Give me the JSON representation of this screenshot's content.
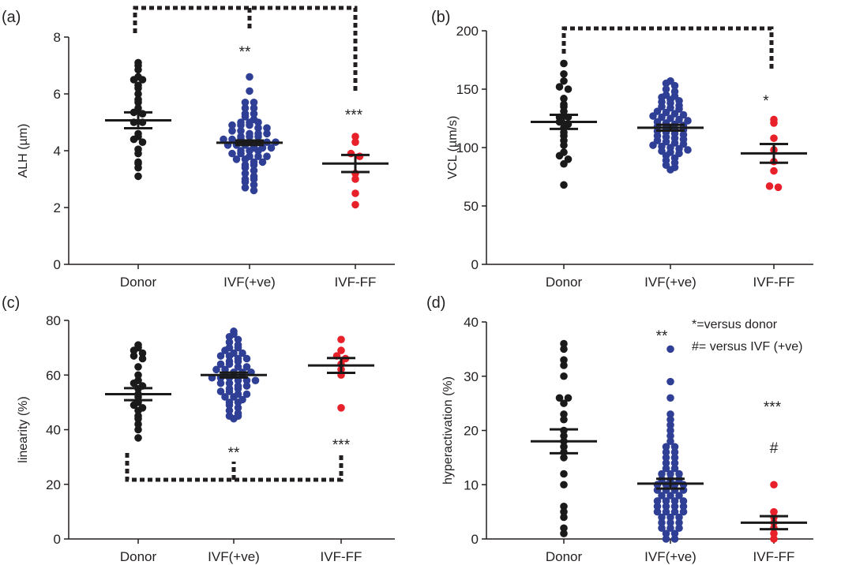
{
  "chart_data": [
    {
      "panel": "(a)",
      "type": "scatter",
      "ylabel": "ALH (µm)",
      "ylim": [
        0,
        8
      ],
      "yticks": [
        0,
        2,
        4,
        6,
        8
      ],
      "categories": [
        "Donor",
        "IVF(+ve)",
        "IVF-FF"
      ],
      "series": [
        {
          "category": "Donor",
          "color": "#1a1a1a",
          "mean": 5.07,
          "sem": 0.28,
          "values": [
            7.1,
            7.0,
            6.85,
            6.6,
            6.5,
            6.5,
            6.3,
            6.2,
            6.0,
            5.8,
            5.7,
            5.5,
            5.35,
            5.3,
            5.0,
            5.0,
            4.6,
            4.5,
            4.4,
            4.3,
            4.05,
            3.9,
            3.6,
            3.55,
            3.4,
            3.1
          ]
        },
        {
          "category": "IVF(+ve)",
          "color": "#2e3f95",
          "mean": 4.28,
          "sem": 0.08,
          "values": [
            6.6,
            6.1,
            5.7,
            5.7,
            5.5,
            5.5,
            5.3,
            5.3,
            5.2,
            5.1,
            5.0,
            5.0,
            5.0,
            4.9,
            4.9,
            4.9,
            4.8,
            4.8,
            4.7,
            4.7,
            4.6,
            4.6,
            4.6,
            4.5,
            4.5,
            4.5,
            4.4,
            4.4,
            4.4,
            4.3,
            4.3,
            4.3,
            4.3,
            4.2,
            4.2,
            4.2,
            4.1,
            4.1,
            4.1,
            4.0,
            4.0,
            4.0,
            3.9,
            3.9,
            3.8,
            3.8,
            3.8,
            3.7,
            3.7,
            3.6,
            3.6,
            3.5,
            3.5,
            3.4,
            3.3,
            3.2,
            3.1,
            3.0,
            3.0,
            2.9,
            2.8,
            2.7,
            2.6
          ]
        },
        {
          "category": "IVF-FF",
          "color": "#e8202a",
          "mean": 3.55,
          "sem": 0.3,
          "values": [
            4.5,
            4.3,
            3.9,
            3.8,
            3.2,
            3.0,
            2.5,
            2.1
          ]
        }
      ],
      "annotations": [
        "**",
        "***"
      ]
    },
    {
      "panel": "(b)",
      "type": "scatter",
      "ylabel": "VCL (µm/s)",
      "ylim": [
        0,
        200
      ],
      "yticks": [
        0,
        50,
        100,
        150,
        200
      ],
      "categories": [
        "Donor",
        "IVF(+ve)",
        "IVF-FF"
      ],
      "series": [
        {
          "category": "Donor",
          "color": "#1a1a1a",
          "mean": 122,
          "sem": 6,
          "values": [
            172,
            163,
            157,
            152,
            150,
            142,
            137,
            135,
            131,
            126,
            126,
            122,
            120,
            117,
            113,
            110,
            106,
            102,
            96,
            93,
            90,
            86,
            68
          ]
        },
        {
          "category": "IVF(+ve)",
          "color": "#2e3f95",
          "mean": 117,
          "sem": 2.5,
          "values": [
            157,
            155,
            153,
            150,
            148,
            145,
            144,
            143,
            141,
            140,
            139,
            138,
            136,
            135,
            134,
            133,
            131,
            130,
            129,
            128,
            127,
            126,
            125,
            124,
            123,
            122,
            121,
            120,
            119,
            118,
            117,
            116,
            115,
            114,
            113,
            112,
            111,
            110,
            109,
            108,
            107,
            106,
            105,
            104,
            103,
            102,
            101,
            100,
            99,
            98,
            97,
            96,
            95,
            93,
            91,
            89,
            87,
            85,
            83,
            81
          ]
        },
        {
          "category": "IVF-FF",
          "color": "#e8202a",
          "mean": 95,
          "sem": 8,
          "values": [
            124,
            121,
            108,
            98,
            88,
            80,
            67,
            66
          ]
        }
      ],
      "annotations": [
        "*"
      ]
    },
    {
      "panel": "(c)",
      "type": "scatter",
      "ylabel": "linearity (%)",
      "ylim": [
        0,
        80
      ],
      "yticks": [
        0,
        20,
        40,
        60,
        80
      ],
      "categories": [
        "Donor",
        "IVF(+ve)",
        "IVF-FF"
      ],
      "series": [
        {
          "category": "Donor",
          "color": "#1a1a1a",
          "mean": 53,
          "sem": 2.2,
          "values": [
            71,
            70,
            69,
            68,
            67,
            66,
            63,
            60,
            58,
            57,
            56,
            55,
            53,
            52,
            50,
            49,
            48,
            47,
            45,
            44,
            42,
            40,
            37
          ]
        },
        {
          "category": "IVF(+ve)",
          "color": "#2e3f95",
          "mean": 60,
          "sem": 0.9,
          "values": [
            76,
            75,
            74,
            73,
            72,
            71,
            70,
            70,
            69,
            68,
            68,
            67,
            67,
            66,
            66,
            65,
            65,
            64,
            64,
            63,
            63,
            62,
            62,
            61,
            61,
            61,
            60,
            60,
            60,
            59,
            59,
            59,
            58,
            58,
            58,
            57,
            57,
            56,
            56,
            55,
            55,
            54,
            54,
            53,
            53,
            52,
            52,
            51,
            50,
            50,
            49,
            48,
            47,
            46,
            45,
            45,
            44
          ]
        },
        {
          "category": "IVF-FF",
          "color": "#e8202a",
          "mean": 63.5,
          "sem": 2.7,
          "values": [
            73,
            69,
            67,
            66,
            64,
            62,
            60,
            48
          ]
        }
      ],
      "annotations": [
        "**",
        "***"
      ]
    },
    {
      "panel": "(d)",
      "type": "scatter",
      "ylabel": "hyperactivation (%)",
      "ylim": [
        0,
        40
      ],
      "yticks": [
        0,
        10,
        20,
        30,
        40
      ],
      "categories": [
        "Donor",
        "IVF(+ve)",
        "IVF-FF"
      ],
      "series": [
        {
          "category": "Donor",
          "color": "#1a1a1a",
          "mean": 18,
          "sem": 2.2,
          "values": [
            36,
            35,
            33,
            32,
            30,
            26,
            26,
            25,
            23,
            22,
            20,
            19,
            18,
            17,
            16,
            15,
            12,
            10,
            6,
            5,
            4,
            2,
            1
          ]
        },
        {
          "category": "IVF(+ve)",
          "color": "#2e3f95",
          "mean": 10.2,
          "sem": 0.9,
          "values": [
            35,
            29,
            26,
            23,
            22,
            21,
            20,
            19,
            18,
            17,
            17,
            16,
            16,
            15,
            15,
            14,
            14,
            13,
            13,
            12,
            12,
            12,
            11,
            11,
            11,
            10,
            10,
            10,
            10,
            9,
            9,
            9,
            9,
            8,
            8,
            8,
            7,
            7,
            7,
            7,
            6,
            6,
            6,
            6,
            5,
            5,
            5,
            5,
            4,
            4,
            4,
            3,
            3,
            3,
            2,
            2,
            2,
            1,
            1,
            0,
            0
          ]
        },
        {
          "category": "IVF-FF",
          "color": "#e8202a",
          "mean": 3.0,
          "sem": 1.2,
          "values": [
            10,
            5,
            4,
            3,
            2,
            1,
            0
          ]
        }
      ],
      "annotations": [
        "**",
        "***",
        "#"
      ],
      "legend": [
        "*=versus donor",
        "#= versus IVF (+ve)"
      ]
    }
  ]
}
